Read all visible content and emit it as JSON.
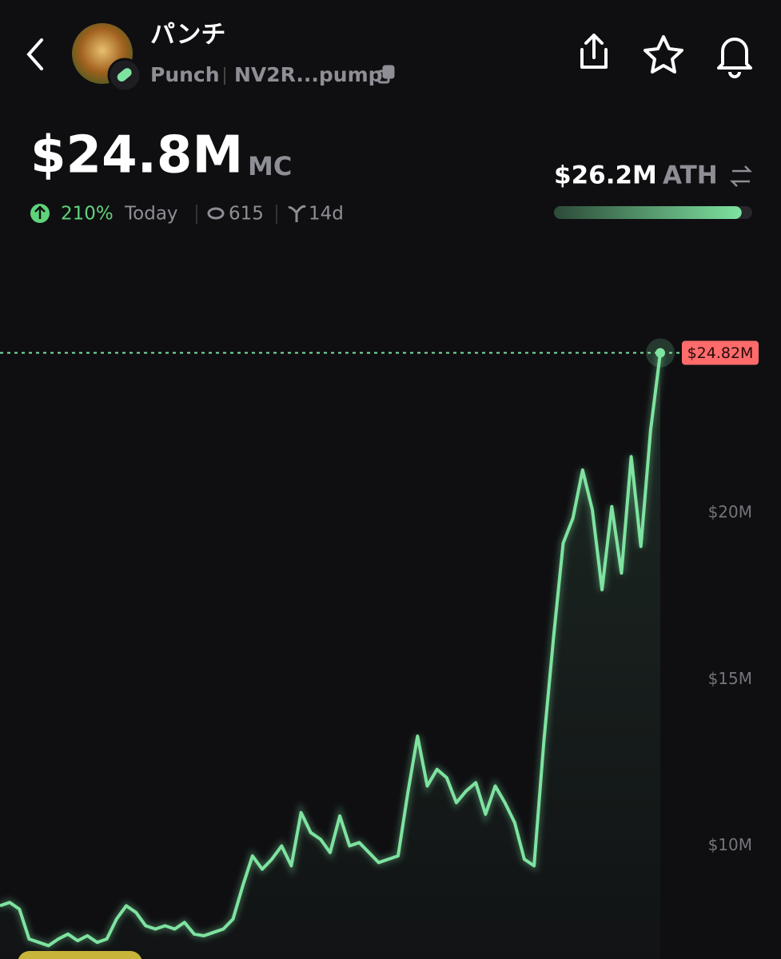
{
  "header": {
    "token_name": "パンチ",
    "ticker": "Punch",
    "address": "NV2R...pump"
  },
  "stats": {
    "market_cap": {
      "value": 24.8,
      "label": "$24.8M"
    },
    "market_cap_unit": "MC",
    "change": "210%",
    "change_period": "Today",
    "views": "615",
    "age": "14d",
    "ath": {
      "value": 26.2,
      "label": "$26.2M"
    },
    "ath_label": "ATH"
  },
  "chart_data": {
    "type": "line",
    "color": "#7ee3a0",
    "ylim": [
      6.6,
      27.5
    ],
    "yticks": [
      {
        "value": 10,
        "label": "$10M"
      },
      {
        "value": 15,
        "label": "$15M"
      },
      {
        "value": 20,
        "label": "$20M"
      }
    ],
    "values": [
      8.2,
      8.3,
      8.1,
      7.2,
      7.1,
      7.0,
      7.2,
      7.35,
      7.15,
      7.3,
      7.1,
      7.2,
      7.8,
      8.2,
      8.0,
      7.6,
      7.5,
      7.6,
      7.5,
      7.7,
      7.35,
      7.3,
      7.4,
      7.5,
      7.8,
      8.8,
      9.7,
      9.3,
      9.6,
      10.0,
      9.4,
      11.0,
      10.4,
      10.2,
      9.8,
      10.9,
      10.0,
      10.1,
      9.8,
      9.5,
      9.6,
      9.7,
      11.6,
      13.3,
      11.8,
      12.3,
      12.05,
      11.3,
      11.65,
      11.9,
      10.95,
      11.8,
      11.3,
      10.7,
      9.6,
      9.4,
      13.1,
      16.25,
      19.1,
      19.85,
      21.3,
      20.1,
      17.7,
      20.2,
      18.2,
      21.7,
      19.0,
      22.5,
      24.82
    ],
    "last_price": {
      "value": 24.82,
      "label": "$24.82M"
    }
  }
}
